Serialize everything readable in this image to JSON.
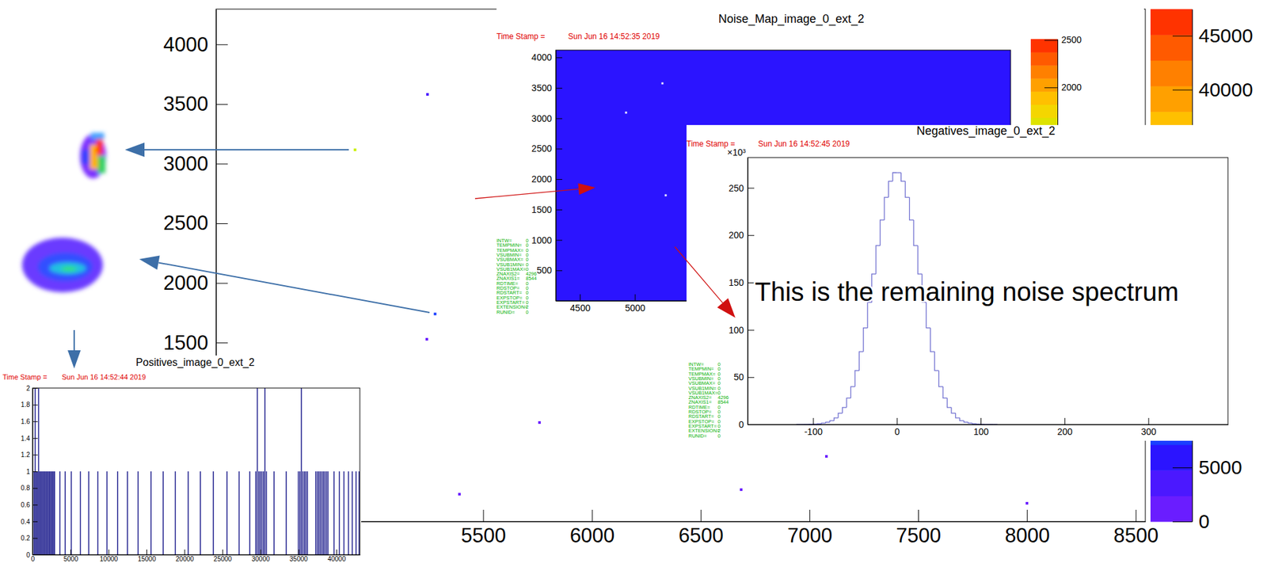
{
  "chart_data": [
    {
      "type": "heatmap",
      "xlim": [
        4272,
        8544
      ],
      "xticks": [
        5500,
        6000,
        6500,
        7000,
        7500,
        8000,
        8500
      ],
      "ylim": [
        0,
        4296
      ],
      "yticks": [
        1500,
        2000,
        2500,
        3000,
        3500,
        4000
      ],
      "points": [
        {
          "x": 4911,
          "y": 3116,
          "value": 30000
        },
        {
          "x": 5279,
          "y": 1740,
          "value": 9000
        },
        {
          "x": 5244,
          "y": 3581,
          "value": 2500
        },
        {
          "x": 5241,
          "y": 1528,
          "value": 1500
        },
        {
          "x": 5759,
          "y": 830,
          "value": 1500
        },
        {
          "x": 5391,
          "y": 229,
          "value": 1500
        },
        {
          "x": 6686,
          "y": 267,
          "value": 1500
        },
        {
          "x": 8000,
          "y": 153,
          "value": 1500
        },
        {
          "x": 7078,
          "y": 546,
          "value": 1500
        }
      ],
      "zlim": [
        0,
        47460
      ],
      "zticks": [
        0,
        5000,
        40000,
        45000
      ]
    },
    {
      "type": "heatmap",
      "title": "Noise_Map_image_0_ext_2",
      "time_stamp_label": "Time Stamp =",
      "time_stamp": "Sun Jun 16 14:52:35 2019",
      "xlim": [
        4280,
        8420
      ],
      "xticks": [
        4500,
        5000
      ],
      "ylim": [
        0,
        4120
      ],
      "yticks": [
        500,
        1000,
        1500,
        2000,
        2500,
        3000,
        3500,
        4000
      ],
      "cells": [
        {
          "x0": 4280,
          "x1": 8420,
          "y0": 0,
          "y1": 4120,
          "value": 100
        }
      ],
      "empty_pixels": [
        {
          "x": 5251,
          "y": 3574
        },
        {
          "x": 4920,
          "y": 3093
        },
        {
          "x": 5281,
          "y": 1734
        }
      ],
      "zlim": [
        -250,
        2510
      ],
      "zticks": [
        2000,
        2500
      ],
      "stats": [
        {
          "key": "INTW=",
          "value": 0
        },
        {
          "key": "TEMPMIN=",
          "value": 0
        },
        {
          "key": "TEMPMAX=",
          "value": 0
        },
        {
          "key": "VSUBMIN=",
          "value": 0
        },
        {
          "key": "VSUBMAX=",
          "value": 0
        },
        {
          "key": "VSUB1MIN=",
          "value": 0
        },
        {
          "key": "VSUB1MAX=",
          "value": 0
        },
        {
          "key": "ZNAXIS2=",
          "value": 4296
        },
        {
          "key": "ZNAXIS1=",
          "value": 8544
        },
        {
          "key": "RDTIME=",
          "value": 0
        },
        {
          "key": "RDSTOP=",
          "value": 0
        },
        {
          "key": "RDSTART=",
          "value": 0
        },
        {
          "key": "EXPSTOP=",
          "value": 0
        },
        {
          "key": "EXPSTART=",
          "value": 0
        },
        {
          "key": "EXTENSION=",
          "value": 2
        },
        {
          "key": "RUNID=",
          "value": 0
        }
      ]
    },
    {
      "type": "histogram",
      "title": "Negatives_image_0_ext_2",
      "time_stamp_label": "Time Stamp =",
      "time_stamp": "Sun Jun 16 14:52:45 2019",
      "ylabel": "×10³",
      "color": "#6f6fd0",
      "bins": [
        -120,
        -115,
        -110,
        -105,
        -100,
        -95,
        -90,
        -85,
        -80,
        -75,
        -70,
        -65,
        -60,
        -55,
        -50,
        -45,
        -40,
        -35,
        -30,
        -25,
        -20,
        -15,
        -10,
        -5,
        0,
        5,
        10,
        15,
        20,
        25,
        30,
        35,
        40,
        45,
        50,
        55,
        60,
        65,
        70,
        75,
        80,
        85,
        90,
        95,
        100,
        105,
        110,
        115,
        120
      ],
      "values": [
        0,
        0,
        0.1,
        0.2,
        0.4,
        0.7,
        1.4,
        2.5,
        4,
        7,
        12,
        18,
        28,
        40,
        57,
        77,
        102,
        129,
        159,
        189,
        216,
        240,
        257,
        266,
        266,
        257,
        240,
        216,
        189,
        159,
        129,
        102,
        77,
        57,
        40,
        28,
        18,
        12,
        7,
        4,
        2.5,
        1.4,
        0.7,
        0.4,
        0.2,
        0.1,
        0,
        0
      ],
      "xlim": [
        -178,
        395
      ],
      "xticks": [
        -100,
        0,
        100,
        200,
        300
      ],
      "ylim": [
        0,
        282
      ],
      "yticks": [
        0,
        50,
        100,
        150,
        200,
        250
      ],
      "annotations": [
        "This is the remaining noise spectrum"
      ],
      "stats": [
        {
          "key": "INTW=",
          "value": 0
        },
        {
          "key": "TEMPMIN=",
          "value": 0
        },
        {
          "key": "TEMPMAX=",
          "value": 0
        },
        {
          "key": "VSUBMIN=",
          "value": 0
        },
        {
          "key": "VSUBMAX=",
          "value": 0
        },
        {
          "key": "VSUB1MIN=",
          "value": 0
        },
        {
          "key": "VSUB1MAX=",
          "value": 0
        },
        {
          "key": "ZNAXIS2=",
          "value": 4296
        },
        {
          "key": "ZNAXIS1=",
          "value": 8544
        },
        {
          "key": "RDTIME=",
          "value": 0
        },
        {
          "key": "RDSTOP=",
          "value": 0
        },
        {
          "key": "RDSTART=",
          "value": 0
        },
        {
          "key": "EXPSTOP=",
          "value": 0
        },
        {
          "key": "EXPSTART=",
          "value": 0
        },
        {
          "key": "EXTENSION=",
          "value": 2
        },
        {
          "key": "RUNID=",
          "value": 0
        }
      ]
    },
    {
      "type": "bar",
      "title": "Positives_image_0_ext_2",
      "time_stamp_label": "Time Stamp =",
      "time_stamp": "Sun Jun 16 14:52:44 2019",
      "color": "#1c1c8c",
      "x": [
        200,
        350,
        500,
        650,
        800,
        950,
        1100,
        1250,
        1400,
        1550,
        1700,
        1850,
        2000,
        2150,
        2300,
        2450,
        2600,
        2750,
        2900,
        3600,
        4300,
        5100,
        6300,
        7400,
        8600,
        9800,
        11200,
        12500,
        13900,
        15600,
        17200,
        18800,
        20500,
        22100,
        23800,
        25600,
        27200,
        28600,
        29400,
        29600,
        29800,
        30000,
        30200,
        30400,
        30600,
        30800,
        31800,
        33400,
        35000,
        35200,
        35400,
        35600,
        35800,
        36000,
        36200,
        37300,
        37500,
        37700,
        37900,
        38100,
        38300,
        38500,
        38700,
        38900,
        39700,
        40400,
        41000,
        41600,
        42100,
        42600,
        43000
      ],
      "values": [
        1,
        2,
        1,
        1,
        2,
        1,
        1,
        1,
        1,
        1,
        1,
        1,
        1,
        1,
        1,
        1,
        1,
        1,
        1,
        1,
        1,
        1,
        1,
        1,
        1,
        1,
        1,
        1,
        1,
        1,
        1,
        1,
        1,
        1,
        1,
        1,
        1,
        1,
        1,
        2,
        1,
        1,
        1,
        1,
        2,
        1,
        1,
        1,
        1,
        1,
        2,
        1,
        1,
        1,
        1,
        1,
        1,
        1,
        1,
        1,
        1,
        1,
        1,
        1,
        1,
        1,
        1,
        1,
        1,
        1,
        1
      ],
      "xlim": [
        0,
        43100
      ],
      "xticks": [
        0,
        5000,
        10000,
        15000,
        20000,
        25000,
        30000,
        35000,
        40000
      ],
      "ylim": [
        0,
        2
      ],
      "yticks": [
        0,
        0.2,
        0.4,
        0.6,
        0.8,
        1,
        1.2,
        1.4,
        1.6,
        1.8,
        2
      ]
    }
  ]
}
